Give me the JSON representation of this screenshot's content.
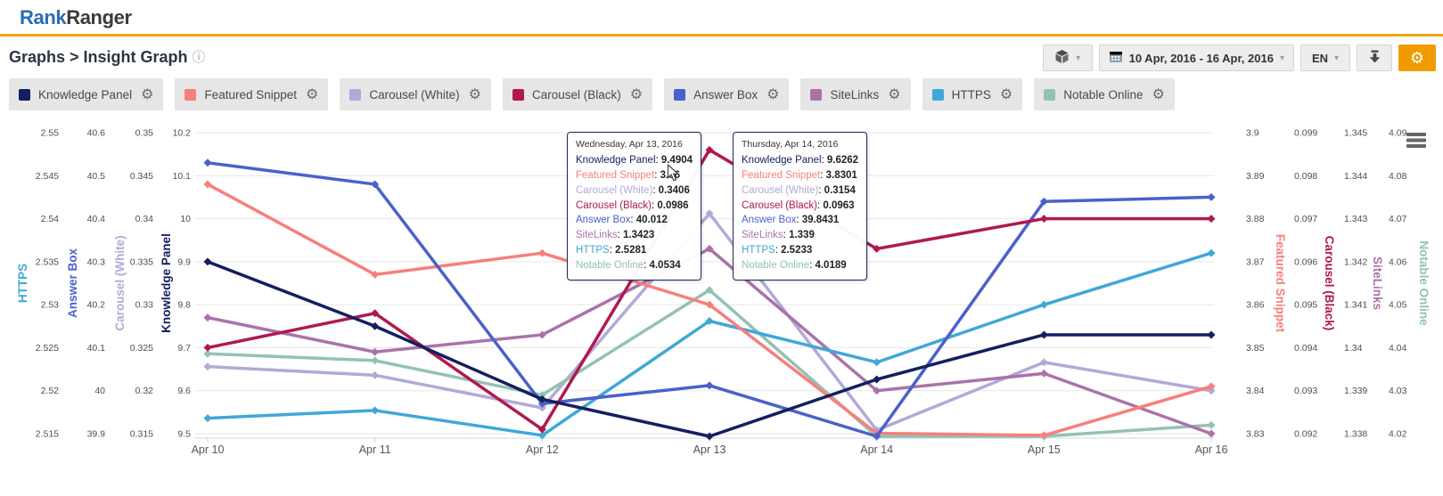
{
  "header": {
    "logo_rank": "Rank",
    "logo_ranger": "Ranger"
  },
  "breadcrumb": {
    "label": "Graphs > Insight Graph"
  },
  "toolbar": {
    "date_range": "10 Apr, 2016 - 16 Apr, 2016",
    "language": "EN"
  },
  "icons": {
    "info-icon": "ⓘ",
    "gear-icon": "⚙",
    "dropdown-caret-icon": "▾"
  },
  "colors": {
    "header_accent": "#efa700",
    "settings_button": "#f09c00",
    "legend_chip_bg": "#e6e6e6"
  },
  "legend": [
    {
      "label": "Knowledge Panel",
      "color": "#131f61"
    },
    {
      "label": "Featured Snippet",
      "color": "#f87f7b"
    },
    {
      "label": "Carousel (White)",
      "color": "#b1aad8"
    },
    {
      "label": "Carousel (Black)",
      "color": "#b01950"
    },
    {
      "label": "Answer Box",
      "color": "#4a61cb"
    },
    {
      "label": "SiteLinks",
      "color": "#a973a9"
    },
    {
      "label": "HTTPS",
      "color": "#3fa8d8"
    },
    {
      "label": "Notable Online",
      "color": "#93c2b3"
    }
  ],
  "chart_data": {
    "type": "line",
    "x_labels": [
      "Apr 10",
      "Apr 11",
      "Apr 12",
      "Apr 13",
      "Apr 14",
      "Apr 15",
      "Apr 16"
    ],
    "grid": true,
    "legend_position": "top-external-chips",
    "axes": [
      {
        "name": "HTTPS",
        "side": "left",
        "slot": 0,
        "color": "#3fa8d8",
        "min": 2.515,
        "max": 2.55,
        "tick_labels": [
          "2.55",
          "2.545",
          "2.54",
          "2.535",
          "2.53",
          "2.525",
          "2.52",
          "2.515"
        ]
      },
      {
        "name": "Answer Box",
        "side": "left",
        "slot": 1,
        "color": "#4a61cb",
        "min": 39.9,
        "max": 40.6,
        "tick_labels": [
          "40.6",
          "40.5",
          "40.4",
          "40.3",
          "40.2",
          "40.1",
          "40",
          "39.9"
        ]
      },
      {
        "name": "Carousel (White)",
        "side": "left",
        "slot": 2,
        "color": "#b1aad8",
        "min": 0.315,
        "max": 0.35,
        "tick_labels": [
          "0.35",
          "0.345",
          "0.34",
          "0.335",
          "0.33",
          "0.325",
          "0.32",
          "0.315"
        ]
      },
      {
        "name": "Knowledge Panel",
        "side": "left",
        "slot": 3,
        "color": "#131f61",
        "min": 9.5,
        "max": 10.2,
        "tick_labels": [
          "10.2",
          "10.1",
          "10",
          "9.9",
          "9.8",
          "9.7",
          "9.6",
          "9.5"
        ]
      },
      {
        "name": "Featured Snippet",
        "side": "right",
        "slot": 0,
        "color": "#f87f7b",
        "min": 3.83,
        "max": 3.9,
        "tick_labels": [
          "3.9",
          "3.89",
          "3.88",
          "3.87",
          "3.86",
          "3.85",
          "3.84",
          "3.83"
        ]
      },
      {
        "name": "Carousel (Black)",
        "side": "right",
        "slot": 1,
        "color": "#b01950",
        "min": 0.092,
        "max": 0.099,
        "tick_labels": [
          "0.099",
          "0.098",
          "0.097",
          "0.096",
          "0.095",
          "0.094",
          "0.093",
          "0.092"
        ]
      },
      {
        "name": "SiteLinks",
        "side": "right",
        "slot": 2,
        "color": "#a973a9",
        "min": 1.338,
        "max": 1.345,
        "tick_labels": [
          "1.345",
          "1.344",
          "1.343",
          "1.342",
          "1.341",
          "1.34",
          "1.339",
          "1.338"
        ]
      },
      {
        "name": "Notable Online",
        "side": "right",
        "slot": 3,
        "color": "#93c2b3",
        "min": 4.02,
        "max": 4.09,
        "tick_labels": [
          "4.09",
          "4.08",
          "4.07",
          "4.06",
          "4.05",
          "4.04",
          "4.03",
          "4.02"
        ]
      }
    ],
    "series": [
      {
        "name": "Knowledge Panel",
        "axis": "Knowledge Panel",
        "color": "#131f61",
        "values": [
          9.9,
          9.75,
          9.58,
          9.4904,
          9.6262,
          9.73,
          9.73
        ]
      },
      {
        "name": "Featured Snippet",
        "axis": "Featured Snippet",
        "color": "#f87f7b",
        "values": [
          3.888,
          3.867,
          3.872,
          3.86,
          3.8301,
          3.8296,
          3.841
        ]
      },
      {
        "name": "Carousel (White)",
        "axis": "Carousel (White)",
        "color": "#b1aad8",
        "values": [
          0.3228,
          0.3218,
          0.318,
          0.3406,
          0.3154,
          0.3233,
          0.32
        ]
      },
      {
        "name": "Carousel (Black)",
        "axis": "Carousel (Black)",
        "color": "#b01950",
        "values": [
          0.094,
          0.0948,
          0.0921,
          0.0986,
          0.0963,
          0.097,
          0.097
        ]
      },
      {
        "name": "Answer Box",
        "axis": "Answer Box",
        "color": "#4a61cb",
        "values": [
          40.53,
          40.48,
          39.97,
          40.012,
          39.8431,
          40.44,
          40.45
        ]
      },
      {
        "name": "SiteLinks",
        "axis": "SiteLinks",
        "color": "#a973a9",
        "values": [
          1.3407,
          1.3399,
          1.3403,
          1.3423,
          1.339,
          1.3394,
          1.338
        ]
      },
      {
        "name": "HTTPS",
        "axis": "HTTPS",
        "color": "#3fa8d8",
        "values": [
          2.5168,
          2.5177,
          2.5148,
          2.5281,
          2.5233,
          2.53,
          2.536
        ]
      },
      {
        "name": "Notable Online",
        "axis": "Notable Online",
        "color": "#93c2b3",
        "values": [
          4.0386,
          4.037,
          4.029,
          4.0534,
          4.0189,
          4.018,
          4.022
        ]
      }
    ]
  },
  "tooltips": [
    {
      "title": "Wednesday, Apr 13, 2016",
      "rows": [
        {
          "label": "Knowledge Panel",
          "value": "9.4904"
        },
        {
          "label": "Featured Snippet",
          "value": "3.86"
        },
        {
          "label": "Carousel (White)",
          "value": "0.3406"
        },
        {
          "label": "Carousel (Black)",
          "value": "0.0986"
        },
        {
          "label": "Answer Box",
          "value": "40.012"
        },
        {
          "label": "SiteLinks",
          "value": "1.3423"
        },
        {
          "label": "HTTPS",
          "value": "2.5281"
        },
        {
          "label": "Notable Online",
          "value": "4.0534"
        }
      ]
    },
    {
      "title": "Thursday, Apr 14, 2016",
      "rows": [
        {
          "label": "Knowledge Panel",
          "value": "9.6262"
        },
        {
          "label": "Featured Snippet",
          "value": "3.8301"
        },
        {
          "label": "Carousel (White)",
          "value": "0.3154"
        },
        {
          "label": "Carousel (Black)",
          "value": "0.0963"
        },
        {
          "label": "Answer Box",
          "value": "39.8431"
        },
        {
          "label": "SiteLinks",
          "value": "1.339"
        },
        {
          "label": "HTTPS",
          "value": "2.5233"
        },
        {
          "label": "Notable Online",
          "value": "4.0189"
        }
      ]
    }
  ]
}
